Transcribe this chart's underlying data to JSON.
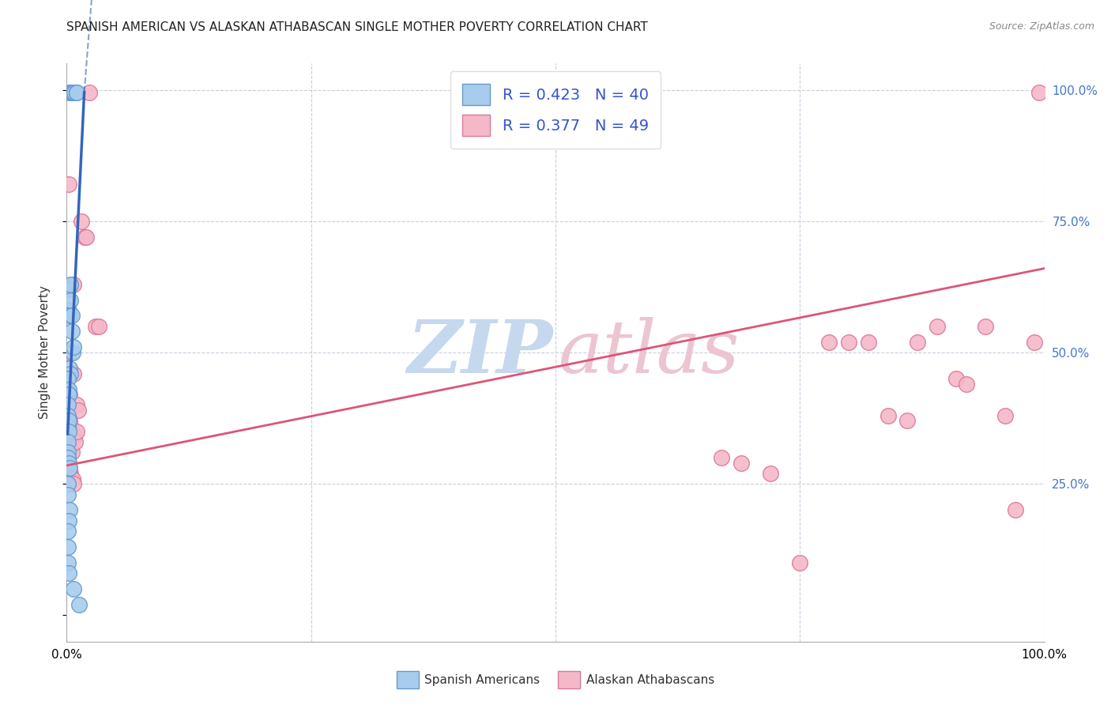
{
  "title": "SPANISH AMERICAN VS ALASKAN ATHABASCAN SINGLE MOTHER POVERTY CORRELATION CHART",
  "source": "Source: ZipAtlas.com",
  "ylabel": "Single Mother Poverty",
  "legend_blue_R": "R = 0.423",
  "legend_blue_N": "N = 40",
  "legend_pink_R": "R = 0.377",
  "legend_pink_N": "N = 49",
  "blue_fill": "#A8CCEE",
  "blue_edge": "#6699CC",
  "pink_fill": "#F5B8C8",
  "pink_edge": "#DD7799",
  "blue_line_color": "#3366BB",
  "pink_line_color": "#DD5577",
  "blue_scatter": [
    [
      0.003,
      0.995
    ],
    [
      0.005,
      0.995
    ],
    [
      0.006,
      0.995
    ],
    [
      0.008,
      0.995
    ],
    [
      0.01,
      0.995
    ],
    [
      0.01,
      0.995
    ],
    [
      0.001,
      0.62
    ],
    [
      0.002,
      0.58
    ],
    [
      0.003,
      0.57
    ],
    [
      0.004,
      0.63
    ],
    [
      0.004,
      0.6
    ],
    [
      0.005,
      0.57
    ],
    [
      0.005,
      0.54
    ],
    [
      0.006,
      0.5
    ],
    [
      0.007,
      0.51
    ],
    [
      0.003,
      0.47
    ],
    [
      0.004,
      0.46
    ],
    [
      0.001,
      0.45
    ],
    [
      0.002,
      0.43
    ],
    [
      0.002,
      0.42
    ],
    [
      0.001,
      0.4
    ],
    [
      0.001,
      0.38
    ],
    [
      0.001,
      0.36
    ],
    [
      0.002,
      0.37
    ],
    [
      0.002,
      0.35
    ],
    [
      0.001,
      0.33
    ],
    [
      0.001,
      0.31
    ],
    [
      0.001,
      0.3
    ],
    [
      0.002,
      0.29
    ],
    [
      0.003,
      0.28
    ],
    [
      0.001,
      0.25
    ],
    [
      0.001,
      0.23
    ],
    [
      0.003,
      0.2
    ],
    [
      0.002,
      0.18
    ],
    [
      0.001,
      0.16
    ],
    [
      0.001,
      0.13
    ],
    [
      0.001,
      0.1
    ],
    [
      0.002,
      0.08
    ],
    [
      0.007,
      0.05
    ],
    [
      0.013,
      0.02
    ]
  ],
  "pink_scatter": [
    [
      0.004,
      0.995
    ],
    [
      0.023,
      0.995
    ],
    [
      0.002,
      0.82
    ],
    [
      0.015,
      0.75
    ],
    [
      0.018,
      0.72
    ],
    [
      0.02,
      0.72
    ],
    [
      0.007,
      0.63
    ],
    [
      0.03,
      0.55
    ],
    [
      0.033,
      0.55
    ],
    [
      0.003,
      0.5
    ],
    [
      0.007,
      0.46
    ],
    [
      0.001,
      0.43
    ],
    [
      0.003,
      0.42
    ],
    [
      0.01,
      0.4
    ],
    [
      0.012,
      0.39
    ],
    [
      0.003,
      0.37
    ],
    [
      0.004,
      0.36
    ],
    [
      0.005,
      0.35
    ],
    [
      0.006,
      0.34
    ],
    [
      0.003,
      0.33
    ],
    [
      0.004,
      0.32
    ],
    [
      0.005,
      0.31
    ],
    [
      0.001,
      0.3
    ],
    [
      0.002,
      0.29
    ],
    [
      0.003,
      0.28
    ],
    [
      0.004,
      0.27
    ],
    [
      0.006,
      0.26
    ],
    [
      0.007,
      0.25
    ],
    [
      0.008,
      0.34
    ],
    [
      0.009,
      0.33
    ],
    [
      0.01,
      0.35
    ],
    [
      0.78,
      0.52
    ],
    [
      0.8,
      0.52
    ],
    [
      0.82,
      0.52
    ],
    [
      0.84,
      0.38
    ],
    [
      0.86,
      0.37
    ],
    [
      0.87,
      0.52
    ],
    [
      0.89,
      0.55
    ],
    [
      0.91,
      0.45
    ],
    [
      0.92,
      0.44
    ],
    [
      0.94,
      0.55
    ],
    [
      0.96,
      0.38
    ],
    [
      0.97,
      0.2
    ],
    [
      0.99,
      0.52
    ],
    [
      0.67,
      0.3
    ],
    [
      0.69,
      0.29
    ],
    [
      0.72,
      0.27
    ],
    [
      0.75,
      0.1
    ],
    [
      0.995,
      0.995
    ]
  ],
  "blue_trendline_solid": [
    [
      0.001,
      0.345
    ],
    [
      0.018,
      0.995
    ]
  ],
  "blue_trendline_dashed": [
    [
      0.018,
      0.995
    ],
    [
      0.033,
      1.35
    ]
  ],
  "pink_trendline": [
    [
      0.0,
      0.285
    ],
    [
      1.0,
      0.66
    ]
  ],
  "xlim": [
    0.0,
    1.0
  ],
  "ylim": [
    -0.05,
    1.05
  ],
  "xtick_positions": [
    0.0,
    0.25,
    0.5,
    0.75,
    1.0
  ],
  "xticklabels_shown": {
    "0.0": "0.0%",
    "1.0": "100.0%"
  },
  "ytick_positions": [
    0.0,
    0.25,
    0.5,
    0.75,
    1.0
  ],
  "yticklabels_right": {
    "0.0": "",
    "0.25": "25.0%",
    "0.5": "50.0%",
    "0.75": "75.0%",
    "1.0": "100.0%"
  },
  "watermark_zip_color": "#C5D8EE",
  "watermark_atlas_color": "#ECC5D0",
  "background_color": "#FFFFFF",
  "grid_color": "#CCCCDD",
  "right_tick_color": "#4477CC",
  "legend_text_color": "#3355CC",
  "source_color": "#888888"
}
